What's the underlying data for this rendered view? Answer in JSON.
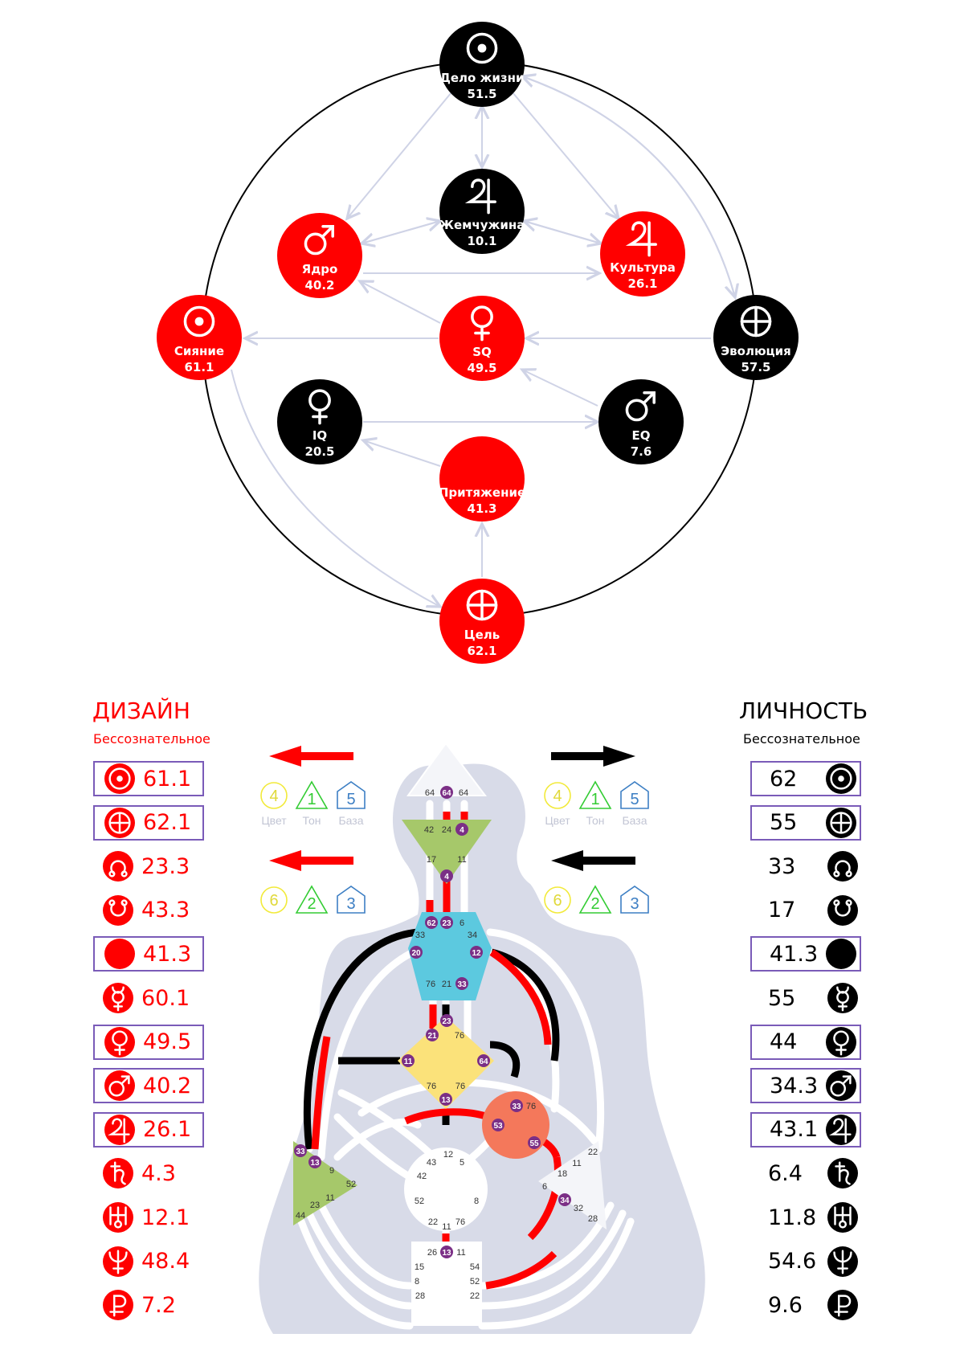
{
  "colors": {
    "red": "#ff0000",
    "black": "#000000",
    "arrow_gray": "#cfd3e6",
    "silhouette": "#d8dbe8",
    "box_border": "#7a5bb8",
    "gate_purple": "#7b2f86",
    "throat": "#5cc9df",
    "head_green": "#a6c86a",
    "g_yellow": "#fbe27a",
    "ego_orange": "#f4785b"
  },
  "wheel": {
    "nodes": [
      {
        "id": "delo",
        "label": "Дело жизни",
        "value": "51.5",
        "fill": "black",
        "icon": "sun-icon"
      },
      {
        "id": "pearl",
        "label": "Жемчужина",
        "value": "10.1",
        "fill": "black",
        "icon": "jupiter-icon"
      },
      {
        "id": "core",
        "label": "Ядро",
        "value": "40.2",
        "fill": "red",
        "icon": "mars-icon"
      },
      {
        "id": "culture",
        "label": "Культура",
        "value": "26.1",
        "fill": "red",
        "icon": "jupiter-icon"
      },
      {
        "id": "radiance",
        "label": "Сияние",
        "value": "61.1",
        "fill": "red",
        "icon": "sun-icon"
      },
      {
        "id": "sq",
        "label": "SQ",
        "value": "49.5",
        "fill": "red",
        "icon": "venus-icon"
      },
      {
        "id": "evolution",
        "label": "Эволюция",
        "value": "57.5",
        "fill": "black",
        "icon": "earth-icon"
      },
      {
        "id": "iq",
        "label": "IQ",
        "value": "20.5",
        "fill": "black",
        "icon": "venus-icon"
      },
      {
        "id": "eq",
        "label": "EQ",
        "value": "7.6",
        "fill": "black",
        "icon": "mars-icon"
      },
      {
        "id": "attraction",
        "label": "Притяжение",
        "value": "41.3",
        "fill": "red",
        "icon": "moon-icon"
      },
      {
        "id": "purpose",
        "label": "Цель",
        "value": "62.1",
        "fill": "red",
        "icon": "earth-icon"
      }
    ]
  },
  "design": {
    "title": "ДИЗАЙН",
    "subtitle": "Бессознательное",
    "rows": [
      {
        "icon": "sun-icon",
        "value": "61.1",
        "boxed": true
      },
      {
        "icon": "earth-icon",
        "value": "62.1",
        "boxed": true
      },
      {
        "icon": "north-node-icon",
        "value": "23.3",
        "boxed": false
      },
      {
        "icon": "south-node-icon",
        "value": "43.3",
        "boxed": false
      },
      {
        "icon": "moon-icon",
        "value": "41.3",
        "boxed": true
      },
      {
        "icon": "mercury-icon",
        "value": "60.1",
        "boxed": false
      },
      {
        "icon": "venus-icon",
        "value": "49.5",
        "boxed": true
      },
      {
        "icon": "mars-icon",
        "value": "40.2",
        "boxed": true
      },
      {
        "icon": "jupiter-icon",
        "value": "26.1",
        "boxed": true
      },
      {
        "icon": "saturn-icon",
        "value": "4.3",
        "boxed": false
      },
      {
        "icon": "uranus-icon",
        "value": "12.1",
        "boxed": false
      },
      {
        "icon": "neptune-icon",
        "value": "48.4",
        "boxed": false
      },
      {
        "icon": "pluto-icon",
        "value": "7.2",
        "boxed": false
      }
    ],
    "variables": [
      {
        "color_num": "4",
        "tone_num": "1",
        "base_num": "5",
        "color_label": "Цвет",
        "tone_label": "Тон",
        "base_label": "База"
      },
      {
        "color_num": "6",
        "tone_num": "2",
        "base_num": "3"
      }
    ]
  },
  "personality": {
    "title": "ЛИЧНОСТЬ",
    "subtitle": "Бессознательное",
    "rows": [
      {
        "icon": "sun-icon",
        "value": "62",
        "boxed": true
      },
      {
        "icon": "earth-icon",
        "value": "55",
        "boxed": true
      },
      {
        "icon": "north-node-icon",
        "value": "33",
        "boxed": false
      },
      {
        "icon": "south-node-icon",
        "value": "17",
        "boxed": false
      },
      {
        "icon": "moon-icon",
        "value": "41.3",
        "boxed": true
      },
      {
        "icon": "mercury-icon",
        "value": "55",
        "boxed": false
      },
      {
        "icon": "venus-icon",
        "value": "44",
        "boxed": true
      },
      {
        "icon": "mars-icon",
        "value": "34.3",
        "boxed": true
      },
      {
        "icon": "jupiter-icon",
        "value": "43.1",
        "boxed": true
      },
      {
        "icon": "saturn-icon",
        "value": "6.4",
        "boxed": false
      },
      {
        "icon": "uranus-icon",
        "value": "11.8",
        "boxed": false
      },
      {
        "icon": "neptune-icon",
        "value": "54.6",
        "boxed": false
      },
      {
        "icon": "pluto-icon",
        "value": "9.6",
        "boxed": false
      }
    ],
    "variables": [
      {
        "color_num": "4",
        "tone_num": "1",
        "base_num": "5",
        "color_label": "Цвет",
        "tone_label": "Тон",
        "base_label": "База"
      },
      {
        "color_num": "6",
        "tone_num": "2",
        "base_num": "3"
      }
    ]
  },
  "bodygraph": {
    "gates": {
      "head": [
        "64",
        "64",
        "64"
      ],
      "ajna": [
        "42",
        "24",
        "4",
        "17",
        "11",
        "4"
      ],
      "throat": [
        "62",
        "23",
        "6",
        "33",
        "34",
        "20",
        "12",
        "76",
        "21",
        "33"
      ],
      "g": [
        "23",
        "21",
        "76",
        "11",
        "64",
        "76",
        "76",
        "13"
      ],
      "ego": [
        "33",
        "76",
        "53",
        "55"
      ],
      "spleen": [
        "33",
        "13",
        "9",
        "52",
        "11",
        "23",
        "44"
      ],
      "sacral": [
        "12",
        "43",
        "5",
        "42",
        "52",
        "8",
        "22",
        "11",
        "76"
      ],
      "solar": [
        "22",
        "11",
        "18",
        "6",
        "34",
        "32",
        "28"
      ],
      "root": [
        "26",
        "13",
        "11",
        "15",
        "54",
        "8",
        "52",
        "28",
        "22"
      ]
    }
  }
}
